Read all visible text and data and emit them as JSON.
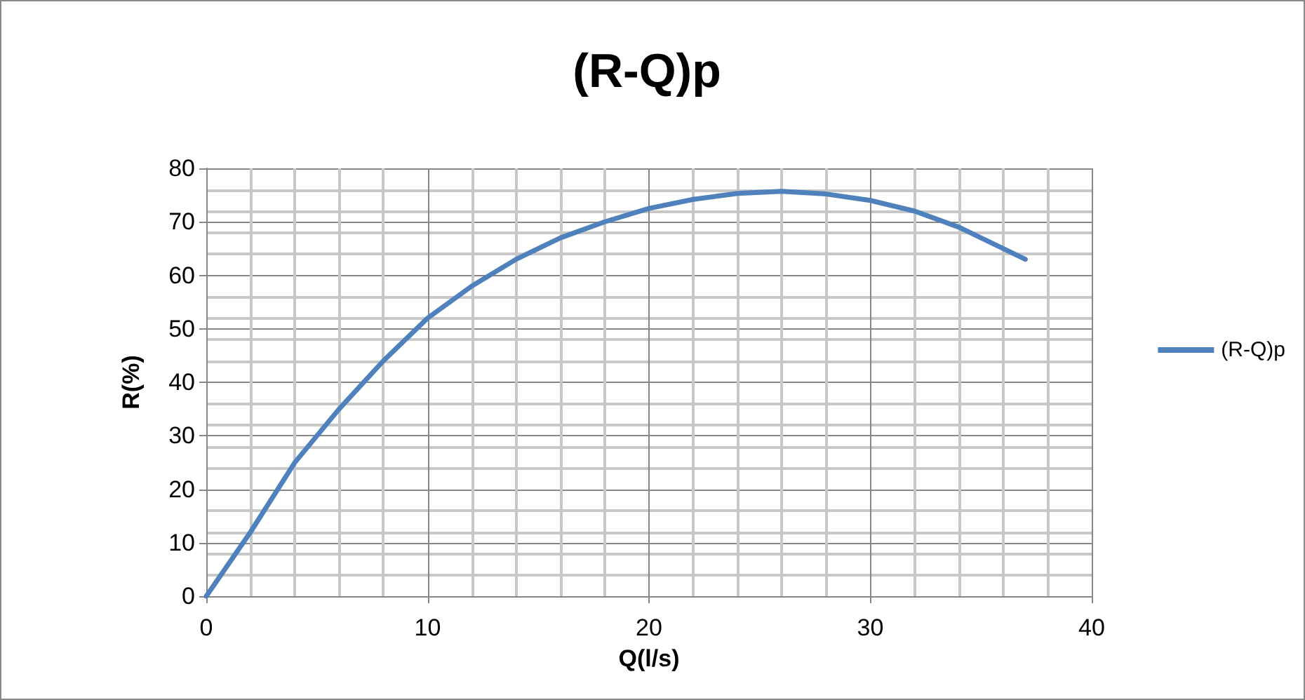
{
  "chart_data": {
    "type": "line",
    "title": "(R-Q)p",
    "xlabel": "Q(l/s)",
    "ylabel": "R(%)",
    "x": [
      0,
      2,
      4,
      6,
      8,
      10,
      12,
      14,
      16,
      18,
      20,
      22,
      24,
      26,
      28,
      30,
      32,
      34,
      36,
      37
    ],
    "series": [
      {
        "name": "(R-Q)p",
        "color": "#4f81bd",
        "values": [
          0,
          12,
          25,
          35,
          44,
          52,
          58,
          63,
          67,
          70,
          72.5,
          74.2,
          75.3,
          75.7,
          75.2,
          74,
          72,
          69,
          65,
          63
        ]
      }
    ],
    "xlim": [
      0,
      40
    ],
    "xticks": [
      0,
      10,
      20,
      30,
      40
    ],
    "ylim": [
      0,
      80
    ],
    "yticks": [
      0,
      10,
      20,
      30,
      40,
      50,
      60,
      70,
      80
    ],
    "grid": true,
    "legend": "right",
    "marker": "none",
    "line_style": "solid"
  }
}
